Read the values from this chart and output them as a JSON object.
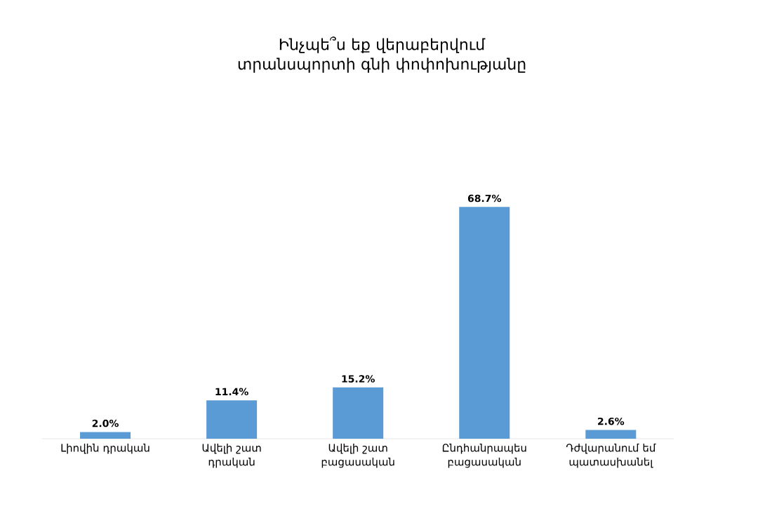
{
  "chart_data": {
    "type": "bar",
    "title": "Ինչպե՞ս եք վերաբերվում տրանսպորտի գնի փոփոխությանը",
    "categories": [
      "Լիովին դրական",
      "Ավելի շատ դրական",
      "Ավելի շատ բացասական",
      "Ընդհանրապես բացասական",
      "Դժվարանում եմ պատասխանել"
    ],
    "values": [
      2.0,
      11.4,
      15.2,
      68.7,
      2.6
    ],
    "value_labels": [
      "2.0%",
      "11.4%",
      "15.2%",
      "68.7%",
      "2.6%"
    ],
    "color": "#5b9bd5"
  }
}
